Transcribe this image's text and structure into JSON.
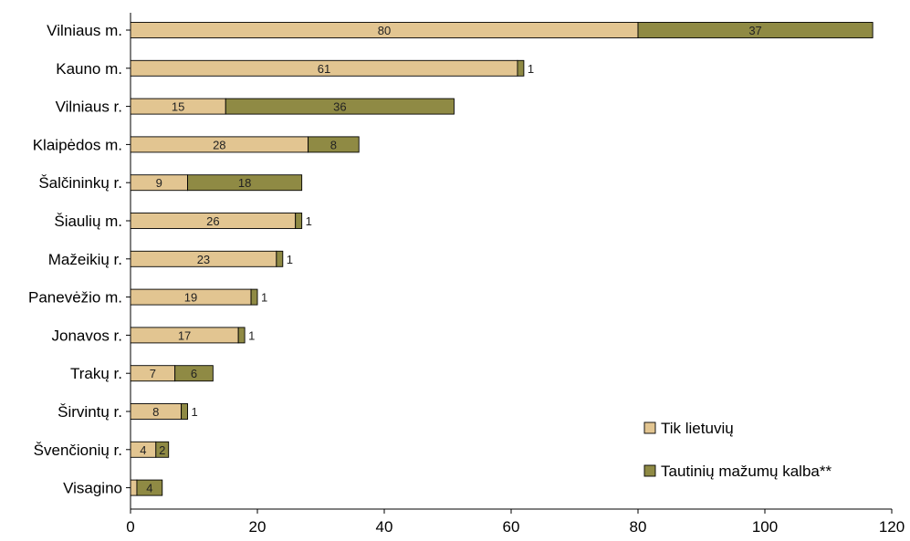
{
  "chart_data": {
    "type": "bar",
    "orientation": "horizontal",
    "stacked": true,
    "categories": [
      "Vilniaus m.",
      "Kauno m.",
      "Vilniaus r.",
      "Klaipėdos m.",
      "Šalčininkų r.",
      "Šiaulių m.",
      "Mažeikių r.",
      "Panevėžio m.",
      "Jonavos r.",
      "Trakų r.",
      "Širvintų r.",
      "Švenčionių r.",
      "Visagino"
    ],
    "series": [
      {
        "name": "Tik lietuvių",
        "color": "#e2c591",
        "values": [
          80,
          61,
          15,
          28,
          9,
          26,
          23,
          19,
          17,
          7,
          8,
          4,
          1
        ],
        "labels": [
          "80",
          "61",
          "15",
          "28",
          "9",
          "26",
          "23",
          "19",
          "17",
          "7",
          "8",
          "4",
          "1"
        ]
      },
      {
        "name": "Tautinių mažumų kalba**",
        "color": "#8f8a44",
        "values": [
          37,
          1,
          36,
          8,
          18,
          1,
          1,
          1,
          1,
          6,
          1,
          2,
          4
        ],
        "labels": [
          "37",
          "1",
          "36",
          "8",
          "18",
          "1",
          "1",
          "1",
          "1",
          "6",
          "1",
          "2",
          "4"
        ]
      }
    ],
    "xlim": [
      0,
      120
    ],
    "xticks": [
      "0",
      "20",
      "40",
      "60",
      "80",
      "100",
      "120"
    ],
    "title": "",
    "xlabel": "",
    "ylabel": "",
    "grid": false,
    "legend": "bottom-right"
  }
}
